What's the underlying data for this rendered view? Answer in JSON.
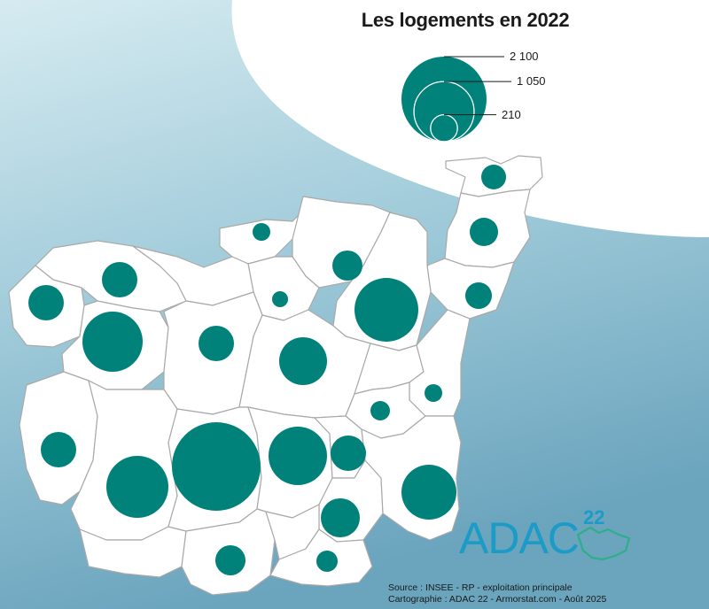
{
  "legend": {
    "title": "Les logements en 2022",
    "values": [
      {
        "label": "2 100",
        "value": 2100
      },
      {
        "label": "1 050",
        "value": 1050
      },
      {
        "label": "210",
        "value": 210
      }
    ]
  },
  "colors": {
    "bubble": "#00827b",
    "background_top": "#c8e2ea",
    "background_bottom": "#6ea8c0",
    "commune_fill": "#ffffff",
    "commune_border": "#a9a9a9",
    "logo": "#1d9bc7"
  },
  "logo": {
    "text": "ADAC",
    "number": "22"
  },
  "source": {
    "line1": "Source : INSEE - RP - exploitation principale",
    "line2": "Cartographie : ADAC 22 - Armorstat.com - Août 2025"
  }
}
